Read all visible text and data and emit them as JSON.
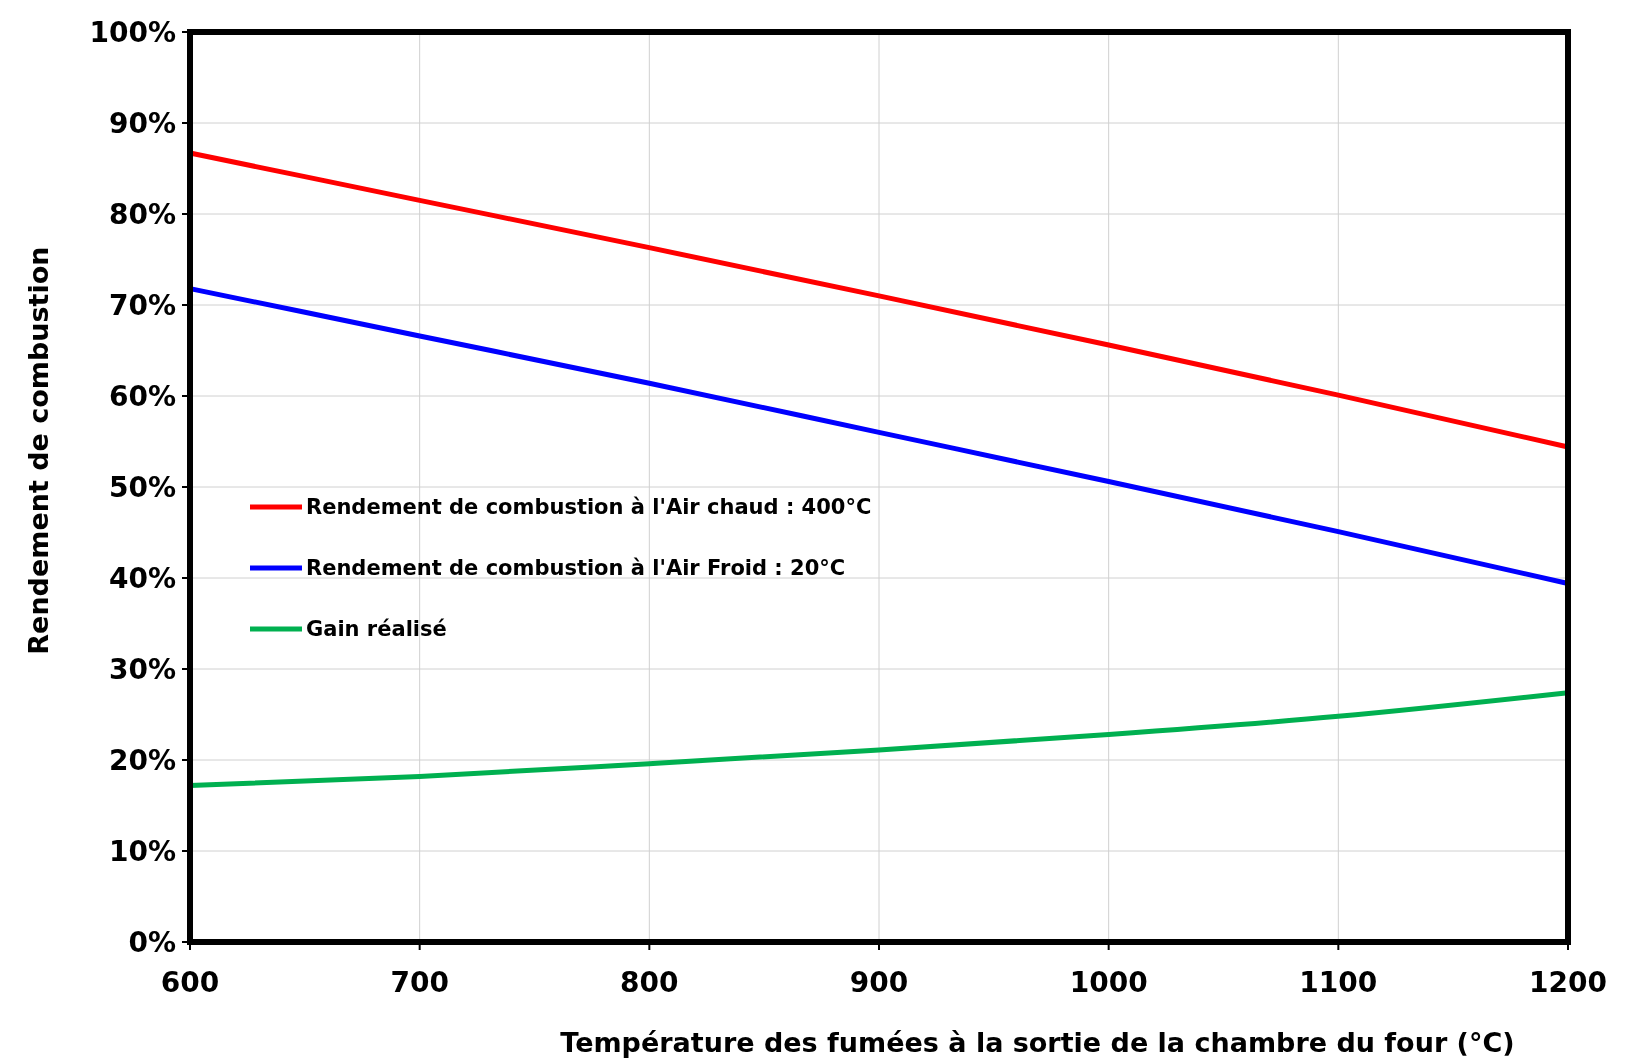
{
  "chart_data": {
    "type": "line",
    "xlabel": "Température des fumées à la sortie de la chambre du four (°C)",
    "ylabel": "Rendement de combustion",
    "x": [
      600,
      700,
      800,
      900,
      1000,
      1100,
      1200
    ],
    "series": [
      {
        "name": "Rendement de combustion à l'Air chaud : 400°C",
        "color": "#ff0000",
        "values": [
          86.7,
          81.5,
          76.3,
          71.0,
          65.6,
          60.1,
          54.4
        ]
      },
      {
        "name": "Rendement de combustion à l'Air Froid : 20°C",
        "color": "#0000ff",
        "values": [
          71.8,
          66.6,
          61.4,
          56.0,
          50.6,
          45.1,
          39.4
        ]
      },
      {
        "name": "Gain réalisé",
        "color": "#00b050",
        "values": [
          17.2,
          18.2,
          19.6,
          21.1,
          22.8,
          24.8,
          27.4
        ]
      }
    ],
    "xlim": [
      600,
      1200
    ],
    "xticks": [
      600,
      700,
      800,
      900,
      1000,
      1100,
      1200
    ],
    "ylim": [
      0,
      100
    ],
    "yticks": [
      {
        "value": 0,
        "label": "0%"
      },
      {
        "value": 10,
        "label": "10%"
      },
      {
        "value": 20,
        "label": "20%"
      },
      {
        "value": 30,
        "label": "30%"
      },
      {
        "value": 40,
        "label": "40%"
      },
      {
        "value": 50,
        "label": "50%"
      },
      {
        "value": 60,
        "label": "60%"
      },
      {
        "value": 70,
        "label": "70%"
      },
      {
        "value": 80,
        "label": "80%"
      },
      {
        "value": 90,
        "label": "90%"
      },
      {
        "value": 100,
        "label": "100%"
      }
    ],
    "grid": true,
    "legend": "left",
    "marker": "none",
    "line_style": "solid"
  }
}
